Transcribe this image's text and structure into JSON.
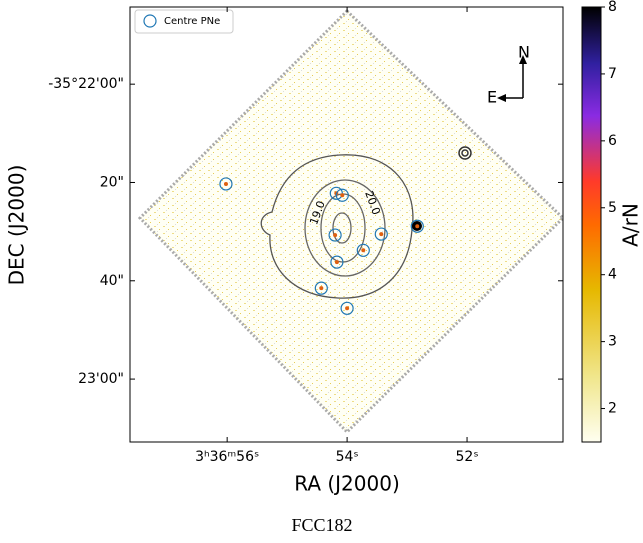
{
  "chart_data": {
    "type": "scatter",
    "caption": "FCC182",
    "xlabel": "RA (J2000)",
    "ylabel": "DEC (J2000)",
    "xlim": [
      57.62,
      50.4
    ],
    "xticks": [
      {
        "value": 56,
        "label": "3ʰ36ᵐ56ˢ"
      },
      {
        "value": 54,
        "label": "54ˢ"
      },
      {
        "value": 52,
        "label": "52ˢ"
      }
    ],
    "ylim": [
      72.8,
      -15.7
    ],
    "yticks": [
      {
        "value": 0,
        "label": "-35°22'00\""
      },
      {
        "value": 20,
        "label": "20\""
      },
      {
        "value": 40,
        "label": "40\""
      },
      {
        "value": 60,
        "label": "23'00\""
      }
    ],
    "legend": "upper left",
    "series": [
      {
        "name": "Centre PNe",
        "color": "#1f77b4",
        "x": [
          56.02,
          54.18,
          54.08,
          54.2,
          54.17,
          53.73,
          53.43,
          52.83,
          54.43,
          54.0
        ],
        "y": [
          20.3,
          22.2,
          22.6,
          30.7,
          36.2,
          33.8,
          30.5,
          28.9,
          41.5,
          45.6
        ]
      }
    ],
    "contour_labels": [
      "19.0",
      "20.0"
    ],
    "compass": {
      "north": "N",
      "east": "E"
    },
    "colorbar": {
      "label": "A/rN",
      "lim": [
        1.5,
        8
      ],
      "ticks": [
        2,
        3,
        4,
        5,
        6,
        7,
        8
      ]
    }
  }
}
